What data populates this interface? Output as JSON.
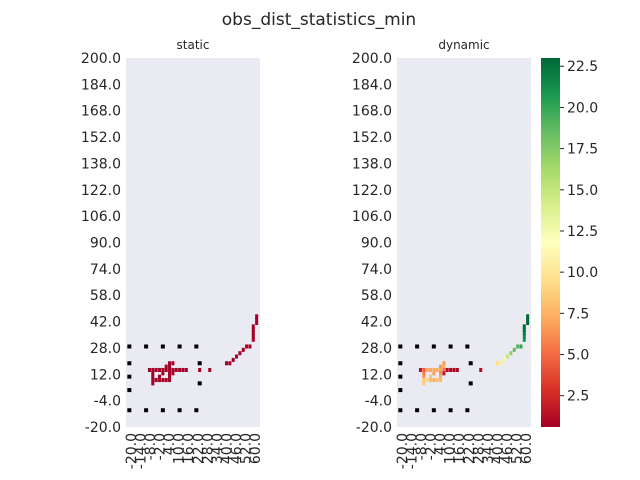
{
  "chart_data": {
    "type": "heatmap",
    "title": "obs_dist_statistics_min",
    "cmap": "RdYlGn",
    "background": "#eaeaf2",
    "grid": false,
    "legend": "right colorbar",
    "colorbar": {
      "vmin": 0.6,
      "vmax": 23.0,
      "ticks": [
        "2.5",
        "5.0",
        "7.5",
        "10.0",
        "12.5",
        "15.0",
        "17.5",
        "20.0",
        "22.5"
      ]
    },
    "y_tick_labels": [
      "200.0",
      "184.0",
      "168.0",
      "152.0",
      "138.0",
      "122.0",
      "106.0",
      "90.0",
      "74.0",
      "58.0",
      "42.0",
      "28.0",
      "12.0",
      "-4.0",
      "-20.0"
    ],
    "x_tick_labels": [
      "-20.0",
      "-14.0",
      "-8.0",
      "-2.0",
      "4.0",
      "10.0",
      "16.0",
      "22.0",
      "28.0",
      "34.0",
      "40.0",
      "46.0",
      "52.0",
      "60.0"
    ],
    "sensor_points": [
      [
        -18,
        28
      ],
      [
        -8,
        28
      ],
      [
        2,
        28
      ],
      [
        12,
        28
      ],
      [
        22,
        28
      ],
      [
        -18,
        18
      ],
      [
        24,
        18
      ],
      [
        -18,
        10
      ],
      [
        -18,
        2
      ],
      [
        24,
        6
      ],
      [
        -18,
        -10
      ],
      [
        -8,
        -10
      ],
      [
        2,
        -10
      ],
      [
        12,
        -10
      ],
      [
        22,
        -10
      ]
    ],
    "panels": [
      {
        "title": "static",
        "cells": [
          {
            "x": 6,
            "y": 18,
            "v": 0.6
          },
          {
            "x": 8,
            "y": 18,
            "v": 0.6
          },
          {
            "x": 4,
            "y": 16,
            "v": 0.6
          },
          {
            "x": 6,
            "y": 16,
            "v": 0.6
          },
          {
            "x": -6,
            "y": 14,
            "v": 0.6
          },
          {
            "x": -4,
            "y": 14,
            "v": 0.6
          },
          {
            "x": -2,
            "y": 14,
            "v": 0.6
          },
          {
            "x": 0,
            "y": 14,
            "v": 0.6
          },
          {
            "x": 2,
            "y": 14,
            "v": 0.6
          },
          {
            "x": 4,
            "y": 14,
            "v": 0.6
          },
          {
            "x": 6,
            "y": 14,
            "v": 0.6
          },
          {
            "x": 8,
            "y": 14,
            "v": 0.6
          },
          {
            "x": 10,
            "y": 14,
            "v": 0.6
          },
          {
            "x": 12,
            "y": 14,
            "v": 0.6
          },
          {
            "x": 14,
            "y": 14,
            "v": 0.6
          },
          {
            "x": 16,
            "y": 14,
            "v": 0.6
          },
          {
            "x": 24,
            "y": 14,
            "v": 0.6
          },
          {
            "x": 30,
            "y": 14,
            "v": 0.6
          },
          {
            "x": -4,
            "y": 12,
            "v": 0.6
          },
          {
            "x": 2,
            "y": 12,
            "v": 0.6
          },
          {
            "x": 6,
            "y": 12,
            "v": 0.6
          },
          {
            "x": 8,
            "y": 12,
            "v": 0.6
          },
          {
            "x": -4,
            "y": 10,
            "v": 0.6
          },
          {
            "x": 0,
            "y": 10,
            "v": 0.6
          },
          {
            "x": 6,
            "y": 10,
            "v": 0.6
          },
          {
            "x": -4,
            "y": 8,
            "v": 0.6
          },
          {
            "x": -2,
            "y": 8,
            "v": 0.6
          },
          {
            "x": 0,
            "y": 8,
            "v": 0.6
          },
          {
            "x": 2,
            "y": 8,
            "v": 0.6
          },
          {
            "x": 4,
            "y": 8,
            "v": 0.6
          },
          {
            "x": 6,
            "y": 8,
            "v": 0.6
          },
          {
            "x": -4,
            "y": 6,
            "v": 0.6
          },
          {
            "x": 40,
            "y": 18,
            "v": 0.6
          },
          {
            "x": 42,
            "y": 18,
            "v": 0.6
          },
          {
            "x": 44,
            "y": 20,
            "v": 0.6
          },
          {
            "x": 46,
            "y": 22,
            "v": 0.6
          },
          {
            "x": 48,
            "y": 24,
            "v": 0.6
          },
          {
            "x": 50,
            "y": 26,
            "v": 0.6
          },
          {
            "x": 52,
            "y": 28,
            "v": 0.6
          },
          {
            "x": 54,
            "y": 28,
            "v": 0.6
          },
          {
            "x": 56,
            "y": 32,
            "v": 0.6
          },
          {
            "x": 56,
            "y": 34,
            "v": 0.6
          },
          {
            "x": 56,
            "y": 36,
            "v": 0.6
          },
          {
            "x": 56,
            "y": 38,
            "v": 0.6
          },
          {
            "x": 56,
            "y": 40,
            "v": 0.6
          },
          {
            "x": 58,
            "y": 42,
            "v": 0.6
          },
          {
            "x": 58,
            "y": 44,
            "v": 0.6
          },
          {
            "x": 58,
            "y": 46,
            "v": 0.6
          }
        ]
      },
      {
        "title": "dynamic",
        "cells": [
          {
            "x": 8,
            "y": 18,
            "v": 6.5
          },
          {
            "x": 6,
            "y": 16,
            "v": 6.5
          },
          {
            "x": 8,
            "y": 16,
            "v": 7.2
          },
          {
            "x": -6,
            "y": 14,
            "v": 1.5
          },
          {
            "x": -4,
            "y": 14,
            "v": 4.5
          },
          {
            "x": -2,
            "y": 14,
            "v": 6.8
          },
          {
            "x": 0,
            "y": 14,
            "v": 7.0
          },
          {
            "x": 2,
            "y": 14,
            "v": 7.2
          },
          {
            "x": 4,
            "y": 14,
            "v": 7.3
          },
          {
            "x": 6,
            "y": 14,
            "v": 7.0
          },
          {
            "x": 8,
            "y": 14,
            "v": 5.5
          },
          {
            "x": 10,
            "y": 14,
            "v": 1.2
          },
          {
            "x": 12,
            "y": 14,
            "v": 1.0
          },
          {
            "x": 14,
            "y": 14,
            "v": 0.9
          },
          {
            "x": 16,
            "y": 14,
            "v": 0.8
          },
          {
            "x": 30,
            "y": 14,
            "v": 1.2
          },
          {
            "x": -4,
            "y": 12,
            "v": 5.5
          },
          {
            "x": 2,
            "y": 12,
            "v": 6.8
          },
          {
            "x": 6,
            "y": 12,
            "v": 6.2
          },
          {
            "x": 8,
            "y": 12,
            "v": 1.8
          },
          {
            "x": -4,
            "y": 10,
            "v": 6.5
          },
          {
            "x": 0,
            "y": 10,
            "v": 8.2
          },
          {
            "x": 6,
            "y": 10,
            "v": 7.5
          },
          {
            "x": -4,
            "y": 8,
            "v": 8.8
          },
          {
            "x": -2,
            "y": 8,
            "v": 9.2
          },
          {
            "x": 0,
            "y": 8,
            "v": 8.0
          },
          {
            "x": 2,
            "y": 8,
            "v": 7.6
          },
          {
            "x": 4,
            "y": 8,
            "v": 8.0
          },
          {
            "x": 6,
            "y": 8,
            "v": 7.8
          },
          {
            "x": -4,
            "y": 6,
            "v": 8.6
          },
          {
            "x": 40,
            "y": 18,
            "v": 9.5
          },
          {
            "x": 42,
            "y": 18,
            "v": 10.5
          },
          {
            "x": 44,
            "y": 20,
            "v": 12.5
          },
          {
            "x": 46,
            "y": 22,
            "v": 15.0
          },
          {
            "x": 48,
            "y": 24,
            "v": 17.0
          },
          {
            "x": 50,
            "y": 26,
            "v": 18.5
          },
          {
            "x": 52,
            "y": 28,
            "v": 19.0
          },
          {
            "x": 54,
            "y": 28,
            "v": 20.0
          },
          {
            "x": 56,
            "y": 32,
            "v": 21.0
          },
          {
            "x": 56,
            "y": 34,
            "v": 21.5
          },
          {
            "x": 56,
            "y": 36,
            "v": 22.0
          },
          {
            "x": 56,
            "y": 38,
            "v": 22.5
          },
          {
            "x": 56,
            "y": 40,
            "v": 22.8
          },
          {
            "x": 58,
            "y": 42,
            "v": 23.0
          },
          {
            "x": 58,
            "y": 44,
            "v": 23.0
          },
          {
            "x": 58,
            "y": 46,
            "v": 23.0
          }
        ]
      }
    ]
  }
}
